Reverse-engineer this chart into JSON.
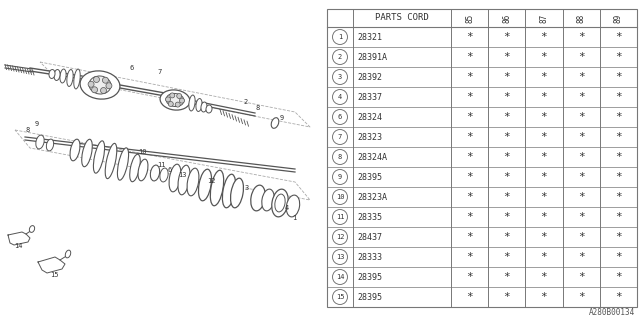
{
  "bg_color": "#ffffff",
  "col_header": "PARTS CORD",
  "year_cols": [
    "85",
    "86",
    "87",
    "88",
    "89"
  ],
  "parts": [
    {
      "circle": "1",
      "code": "28321"
    },
    {
      "circle": "2",
      "code": "28391A"
    },
    {
      "circle": "3",
      "code": "28392"
    },
    {
      "circle": "4",
      "code": "28337"
    },
    {
      "circle": "6",
      "code": "28324"
    },
    {
      "circle": "7",
      "code": "28323"
    },
    {
      "circle": "8",
      "code": "28324A"
    },
    {
      "circle": "9",
      "code": "28395"
    },
    {
      "circle": "10",
      "code": "28323A"
    },
    {
      "circle": "11",
      "code": "28335"
    },
    {
      "circle": "12",
      "code": "28437"
    },
    {
      "circle": "13",
      "code": "28333"
    },
    {
      "circle": "14",
      "code": "28395"
    },
    {
      "circle": "15",
      "code": "28395"
    }
  ],
  "footnote": "A280B00134",
  "lc": "#555555",
  "table_lc": "#777777"
}
